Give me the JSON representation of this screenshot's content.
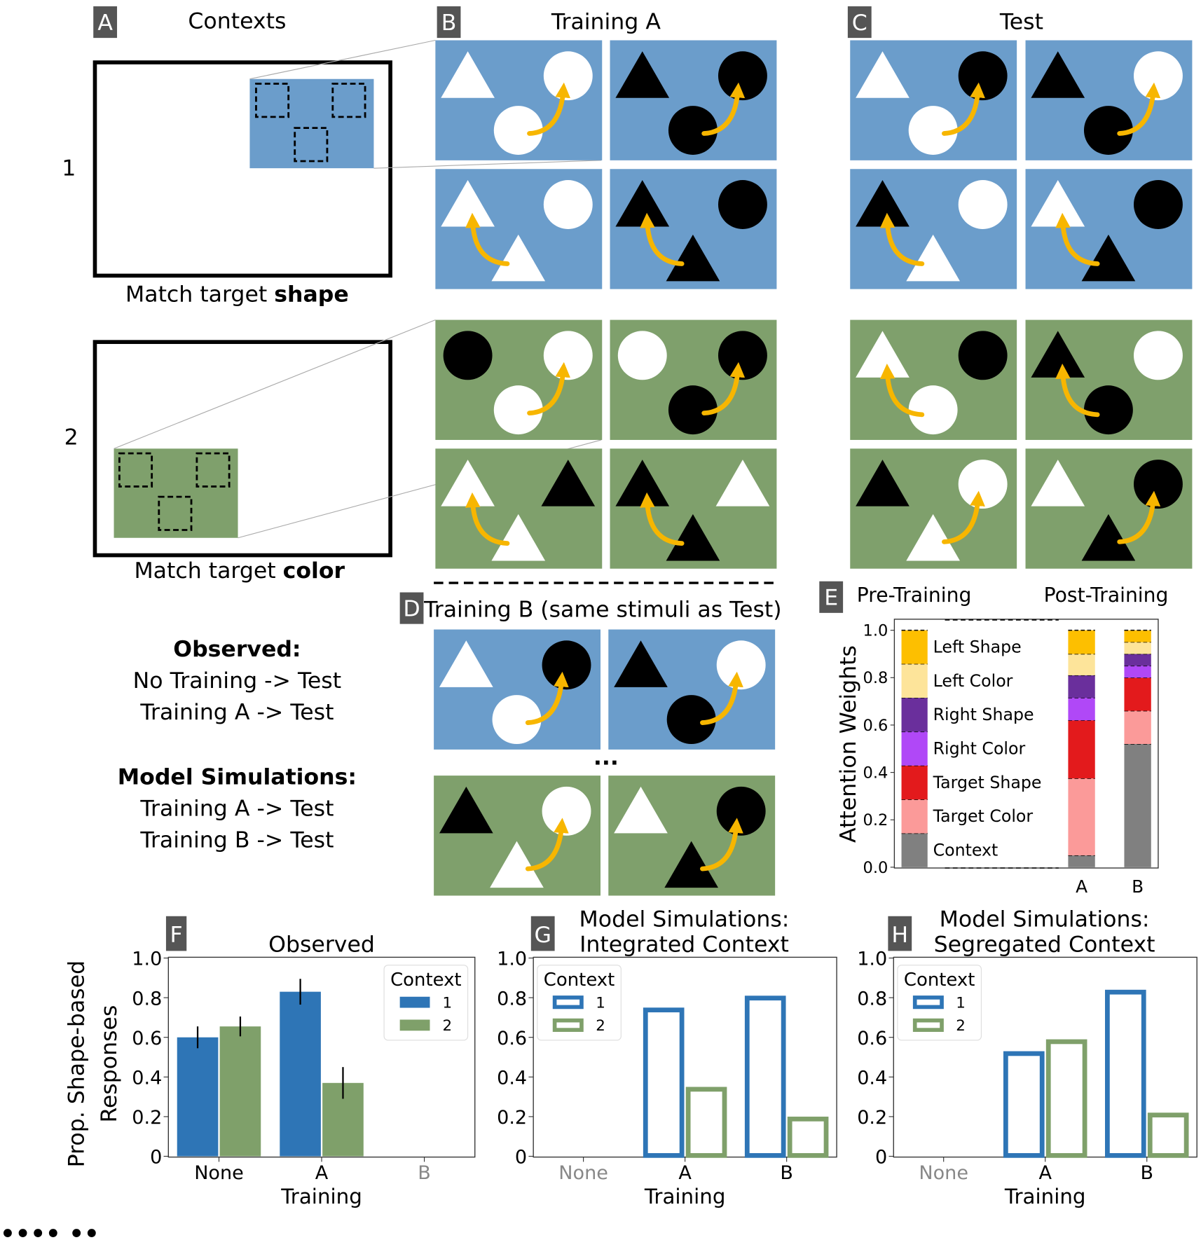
{
  "colors": {
    "blue_bg": "#6b9dcb",
    "green_bg": "#7fa06c",
    "arrow": "#f7b600",
    "bar_blue": "#2e75b6",
    "bar_green": "#7fa06a",
    "panel_label_bg": "#555555"
  },
  "panel_labels": {
    "a": "A",
    "b": "B",
    "c": "C",
    "d": "D",
    "e": "E",
    "f": "F",
    "g": "G",
    "h": "H"
  },
  "panel_a": {
    "title": "Contexts",
    "context1_number": "1",
    "context2_number": "2",
    "context1_caption_prefix": "Match target ",
    "context1_caption_bold": "shape",
    "context2_caption_prefix": "Match target ",
    "context2_caption_bold": "color"
  },
  "panel_b": {
    "title": "Training A"
  },
  "panel_c": {
    "title": "Test"
  },
  "panel_d": {
    "title": "Training B (same stimuli as Test)",
    "ellipsis": "..."
  },
  "conditions": {
    "observed_heading": "Observed:",
    "observed_items": [
      "No Training -> Test",
      "Training A -> Test"
    ],
    "model_heading": "Model Simulations:",
    "model_items": [
      "Training A -> Test",
      "Training B -> Test"
    ]
  },
  "stimuli": {
    "panel_b": [
      {
        "context": "blue",
        "left": [
          "triangle",
          "white"
        ],
        "right": [
          "circle",
          "white"
        ],
        "target": [
          "circle",
          "white"
        ],
        "choice": "right"
      },
      {
        "context": "blue",
        "left": [
          "triangle",
          "black"
        ],
        "right": [
          "circle",
          "black"
        ],
        "target": [
          "circle",
          "black"
        ],
        "choice": "right"
      },
      {
        "context": "blue",
        "left": [
          "triangle",
          "white"
        ],
        "right": [
          "circle",
          "white"
        ],
        "target": [
          "triangle",
          "white"
        ],
        "choice": "left"
      },
      {
        "context": "blue",
        "left": [
          "triangle",
          "black"
        ],
        "right": [
          "circle",
          "black"
        ],
        "target": [
          "triangle",
          "black"
        ],
        "choice": "left"
      },
      {
        "context": "green",
        "left": [
          "circle",
          "black"
        ],
        "right": [
          "circle",
          "white"
        ],
        "target": [
          "circle",
          "white"
        ],
        "choice": "right"
      },
      {
        "context": "green",
        "left": [
          "circle",
          "white"
        ],
        "right": [
          "circle",
          "black"
        ],
        "target": [
          "circle",
          "black"
        ],
        "choice": "right"
      },
      {
        "context": "green",
        "left": [
          "triangle",
          "white"
        ],
        "right": [
          "triangle",
          "black"
        ],
        "target": [
          "triangle",
          "white"
        ],
        "choice": "left"
      },
      {
        "context": "green",
        "left": [
          "triangle",
          "black"
        ],
        "right": [
          "triangle",
          "white"
        ],
        "target": [
          "triangle",
          "black"
        ],
        "choice": "left"
      }
    ],
    "panel_c": [
      {
        "context": "blue",
        "left": [
          "triangle",
          "white"
        ],
        "right": [
          "circle",
          "black"
        ],
        "target": [
          "circle",
          "white"
        ],
        "choice": "right"
      },
      {
        "context": "blue",
        "left": [
          "triangle",
          "black"
        ],
        "right": [
          "circle",
          "white"
        ],
        "target": [
          "circle",
          "black"
        ],
        "choice": "right"
      },
      {
        "context": "blue",
        "left": [
          "triangle",
          "black"
        ],
        "right": [
          "circle",
          "white"
        ],
        "target": [
          "triangle",
          "white"
        ],
        "choice": "left"
      },
      {
        "context": "blue",
        "left": [
          "triangle",
          "white"
        ],
        "right": [
          "circle",
          "black"
        ],
        "target": [
          "triangle",
          "black"
        ],
        "choice": "left"
      },
      {
        "context": "green",
        "left": [
          "triangle",
          "white"
        ],
        "right": [
          "circle",
          "black"
        ],
        "target": [
          "circle",
          "white"
        ],
        "choice": "left"
      },
      {
        "context": "green",
        "left": [
          "triangle",
          "black"
        ],
        "right": [
          "circle",
          "white"
        ],
        "target": [
          "circle",
          "black"
        ],
        "choice": "left"
      },
      {
        "context": "green",
        "left": [
          "triangle",
          "black"
        ],
        "right": [
          "circle",
          "white"
        ],
        "target": [
          "triangle",
          "white"
        ],
        "choice": "right"
      },
      {
        "context": "green",
        "left": [
          "triangle",
          "white"
        ],
        "right": [
          "circle",
          "black"
        ],
        "target": [
          "triangle",
          "black"
        ],
        "choice": "right"
      }
    ],
    "panel_d": [
      {
        "context": "blue",
        "left": [
          "triangle",
          "white"
        ],
        "right": [
          "circle",
          "black"
        ],
        "target": [
          "circle",
          "white"
        ],
        "choice": "right"
      },
      {
        "context": "blue",
        "left": [
          "triangle",
          "black"
        ],
        "right": [
          "circle",
          "white"
        ],
        "target": [
          "circle",
          "black"
        ],
        "choice": "right"
      },
      {
        "context": "green",
        "left": [
          "triangle",
          "black"
        ],
        "right": [
          "circle",
          "white"
        ],
        "target": [
          "triangle",
          "white"
        ],
        "choice": "right"
      },
      {
        "context": "green",
        "left": [
          "triangle",
          "white"
        ],
        "right": [
          "circle",
          "black"
        ],
        "target": [
          "triangle",
          "black"
        ],
        "choice": "right"
      }
    ]
  },
  "chart_data": [
    {
      "id": "E",
      "type": "bar",
      "stacked": true,
      "header_left": "Pre-Training",
      "header_right": "Post-Training",
      "ylabel": "Attention Weights",
      "ylim": [
        0,
        1.0
      ],
      "yticks": [
        "0.0",
        "0.2",
        "0.4",
        "0.6",
        "0.8",
        "1.0"
      ],
      "categories": [
        "Pre",
        "A",
        "B"
      ],
      "category_labels": [
        "",
        "A",
        "B"
      ],
      "series": [
        {
          "name": "Context",
          "color": "#808080",
          "values": [
            0.143,
            0.05,
            0.52
          ]
        },
        {
          "name": "Target Color",
          "color": "#fb9a99",
          "values": [
            0.143,
            0.325,
            0.14
          ]
        },
        {
          "name": "Target Shape",
          "color": "#e31a1c",
          "values": [
            0.143,
            0.245,
            0.14
          ]
        },
        {
          "name": "Right Color",
          "color": "#b048f7",
          "values": [
            0.143,
            0.095,
            0.05
          ]
        },
        {
          "name": "Right Shape",
          "color": "#6a2f9c",
          "values": [
            0.143,
            0.095,
            0.05
          ]
        },
        {
          "name": "Left Color",
          "color": "#fde49a",
          "values": [
            0.143,
            0.09,
            0.05
          ]
        },
        {
          "name": "Left Shape",
          "color": "#fdbf00",
          "values": [
            0.142,
            0.1,
            0.05
          ]
        }
      ]
    },
    {
      "id": "F",
      "type": "bar",
      "title": "Observed",
      "xlabel": "Training",
      "ylabel_line1": "Prop. Shape-based",
      "ylabel_line2": "Responses",
      "ylim": [
        0,
        1.0
      ],
      "yticks": [
        "0",
        "0.2",
        "0.4",
        "0.6",
        "0.8",
        "1.0"
      ],
      "categories": [
        "None",
        "A",
        "B"
      ],
      "category_muted": [
        false,
        false,
        true
      ],
      "fill": "solid",
      "legend_title": "Context",
      "series": [
        {
          "name": "1",
          "color": "#2e75b6",
          "values": [
            0.6,
            0.83,
            null
          ],
          "errors": [
            0.055,
            0.065,
            null
          ]
        },
        {
          "name": "2",
          "color": "#7fa06a",
          "values": [
            0.655,
            0.37,
            null
          ],
          "errors": [
            0.05,
            0.08,
            null
          ]
        }
      ]
    },
    {
      "id": "G",
      "type": "bar",
      "title_line1": "Model Simulations:",
      "title_line2": "Integrated Context",
      "xlabel": "Training",
      "ylim": [
        0,
        1.0
      ],
      "yticks": [
        "0",
        "0.2",
        "0.4",
        "0.6",
        "0.8",
        "1.0"
      ],
      "categories": [
        "None",
        "A",
        "B"
      ],
      "category_muted": [
        true,
        false,
        false
      ],
      "fill": "outline",
      "legend_title": "Context",
      "series": [
        {
          "name": "1",
          "color": "#2e75b6",
          "values": [
            null,
            0.75,
            0.81
          ]
        },
        {
          "name": "2",
          "color": "#7fa06a",
          "values": [
            null,
            0.35,
            0.2
          ]
        }
      ]
    },
    {
      "id": "H",
      "type": "bar",
      "title_line1": "Model Simulations:",
      "title_line2": "Segregated Context",
      "xlabel": "Training",
      "ylim": [
        0,
        1.0
      ],
      "yticks": [
        "0",
        "0.2",
        "0.4",
        "0.6",
        "0.8",
        "1.0"
      ],
      "categories": [
        "None",
        "A",
        "B"
      ],
      "category_muted": [
        true,
        false,
        false
      ],
      "fill": "outline",
      "legend_title": "Context",
      "series": [
        {
          "name": "1",
          "color": "#2e75b6",
          "values": [
            null,
            0.53,
            0.84
          ]
        },
        {
          "name": "2",
          "color": "#7fa06a",
          "values": [
            null,
            0.59,
            0.22
          ]
        }
      ]
    }
  ],
  "footer_fragment": "•••• ••"
}
